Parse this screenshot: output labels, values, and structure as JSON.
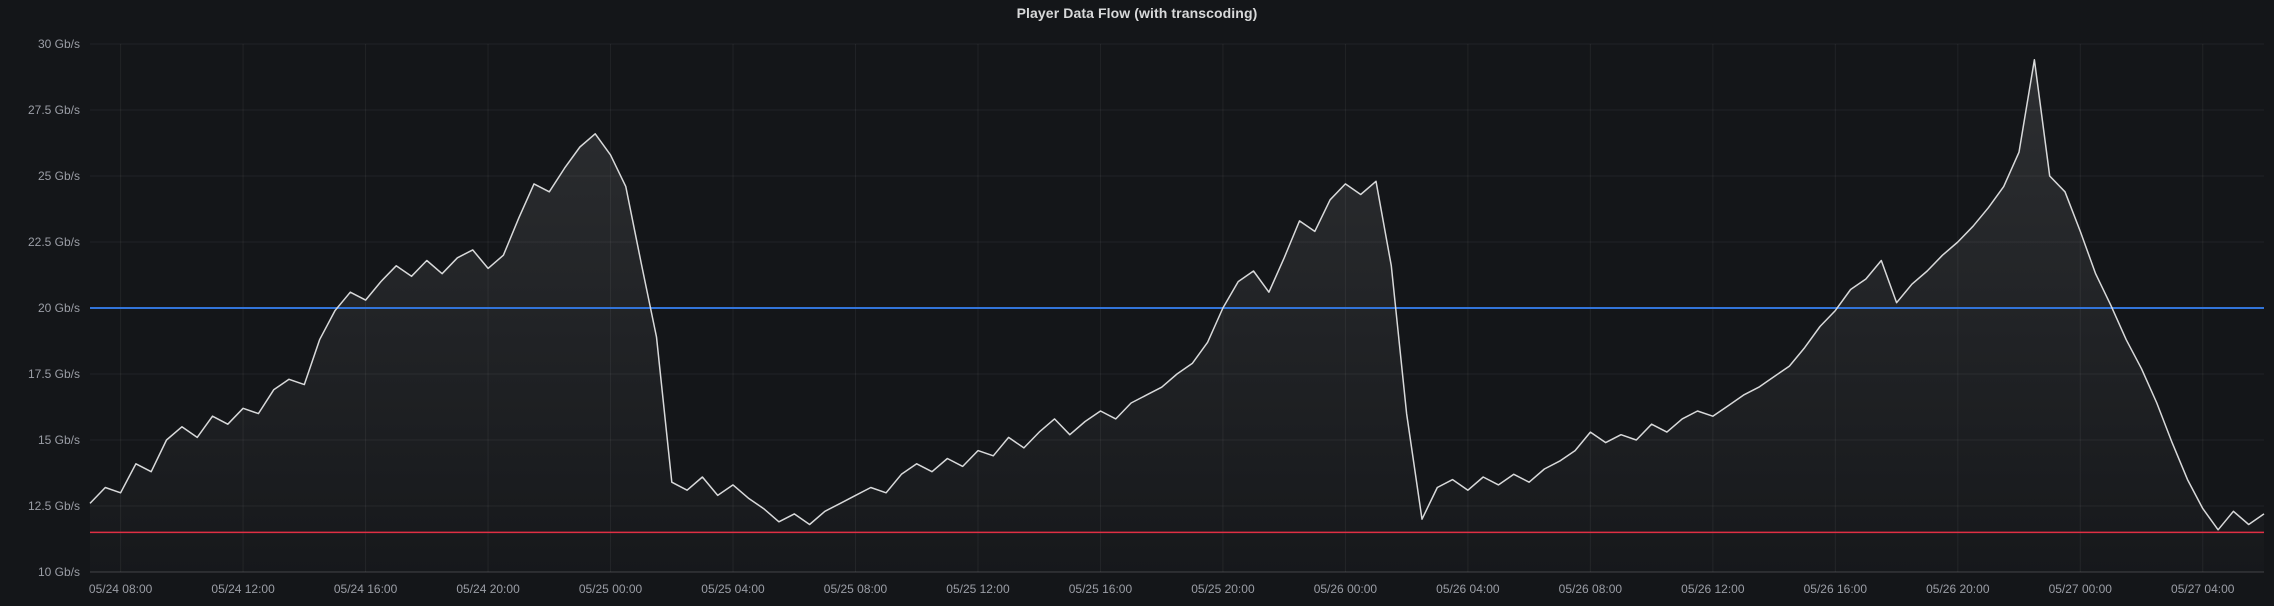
{
  "panel": {
    "title": "Player Data Flow (with transcoding)"
  },
  "chart_data": {
    "type": "line",
    "title": "Player Data Flow (with transcoding)",
    "ylabel": "Gb/s",
    "ylim": [
      10,
      30
    ],
    "xlim": [
      7,
      78
    ],
    "grid": true,
    "legend": "none",
    "x_unit": "hours since 05/24 00:00",
    "y_ticks": [
      {
        "value": 10,
        "label": "10 Gb/s"
      },
      {
        "value": 12.5,
        "label": "12.5 Gb/s"
      },
      {
        "value": 15,
        "label": "15 Gb/s"
      },
      {
        "value": 17.5,
        "label": "17.5 Gb/s"
      },
      {
        "value": 20,
        "label": "20 Gb/s"
      },
      {
        "value": 22.5,
        "label": "22.5 Gb/s"
      },
      {
        "value": 25,
        "label": "25 Gb/s"
      },
      {
        "value": 27.5,
        "label": "27.5 Gb/s"
      },
      {
        "value": 30,
        "label": "30 Gb/s"
      }
    ],
    "x_ticks": [
      {
        "value": 8,
        "label": "05/24 08:00"
      },
      {
        "value": 12,
        "label": "05/24 12:00"
      },
      {
        "value": 16,
        "label": "05/24 16:00"
      },
      {
        "value": 20,
        "label": "05/24 20:00"
      },
      {
        "value": 24,
        "label": "05/25 00:00"
      },
      {
        "value": 28,
        "label": "05/25 04:00"
      },
      {
        "value": 32,
        "label": "05/25 08:00"
      },
      {
        "value": 36,
        "label": "05/25 12:00"
      },
      {
        "value": 40,
        "label": "05/25 16:00"
      },
      {
        "value": 44,
        "label": "05/25 20:00"
      },
      {
        "value": 48,
        "label": "05/26 00:00"
      },
      {
        "value": 52,
        "label": "05/26 04:00"
      },
      {
        "value": 56,
        "label": "05/26 08:00"
      },
      {
        "value": 60,
        "label": "05/26 12:00"
      },
      {
        "value": 64,
        "label": "05/26 16:00"
      },
      {
        "value": 68,
        "label": "05/26 20:00"
      },
      {
        "value": 72,
        "label": "05/27 00:00"
      },
      {
        "value": 76,
        "label": "05/27 04:00"
      }
    ],
    "thresholds": [
      {
        "value": 20,
        "color": "#3274d9"
      },
      {
        "value": 11.5,
        "color": "#e02f44"
      }
    ],
    "colors": {
      "line": "#d8d9da",
      "grid": "rgba(255,255,255,0.06)",
      "axis": "rgba(255,255,255,0.15)",
      "tick_text": "#9b9ea6",
      "fill_top": "rgba(216,217,218,0.13)",
      "fill_bottom": "rgba(216,217,218,0.01)"
    },
    "series": [
      {
        "name": "Player Data Flow",
        "x_start_hours": 7,
        "x_step_hours": 0.5,
        "values": [
          12.6,
          13.2,
          13.0,
          14.1,
          13.8,
          15.0,
          15.5,
          15.1,
          15.9,
          15.6,
          16.2,
          16.0,
          16.9,
          17.3,
          17.1,
          18.8,
          19.9,
          20.6,
          20.3,
          21.0,
          21.6,
          21.2,
          21.8,
          21.3,
          21.9,
          22.2,
          21.5,
          22.0,
          23.4,
          24.7,
          24.4,
          25.3,
          26.1,
          26.6,
          25.8,
          24.6,
          21.7,
          18.9,
          13.4,
          13.1,
          13.6,
          12.9,
          13.3,
          12.8,
          12.4,
          11.9,
          12.2,
          11.8,
          12.3,
          12.6,
          12.9,
          13.2,
          13.0,
          13.7,
          14.1,
          13.8,
          14.3,
          14.0,
          14.6,
          14.4,
          15.1,
          14.7,
          15.3,
          15.8,
          15.2,
          15.7,
          16.1,
          15.8,
          16.4,
          16.7,
          17.0,
          17.5,
          17.9,
          18.7,
          20.0,
          21.0,
          21.4,
          20.6,
          21.9,
          23.3,
          22.9,
          24.1,
          24.7,
          24.3,
          24.8,
          21.6,
          16.0,
          12.0,
          13.2,
          13.5,
          13.1,
          13.6,
          13.3,
          13.7,
          13.4,
          13.9,
          14.2,
          14.6,
          15.3,
          14.9,
          15.2,
          15.0,
          15.6,
          15.3,
          15.8,
          16.1,
          15.9,
          16.3,
          16.7,
          17.0,
          17.4,
          17.8,
          18.5,
          19.3,
          19.9,
          20.7,
          21.1,
          21.8,
          20.2,
          20.9,
          21.4,
          22.0,
          22.5,
          23.1,
          23.8,
          24.6,
          25.9,
          29.4,
          25.0,
          24.4,
          22.9,
          21.3,
          20.1,
          18.8,
          17.7,
          16.4,
          14.9,
          13.5,
          12.4,
          11.6,
          12.3,
          11.8,
          12.2
        ]
      }
    ]
  }
}
